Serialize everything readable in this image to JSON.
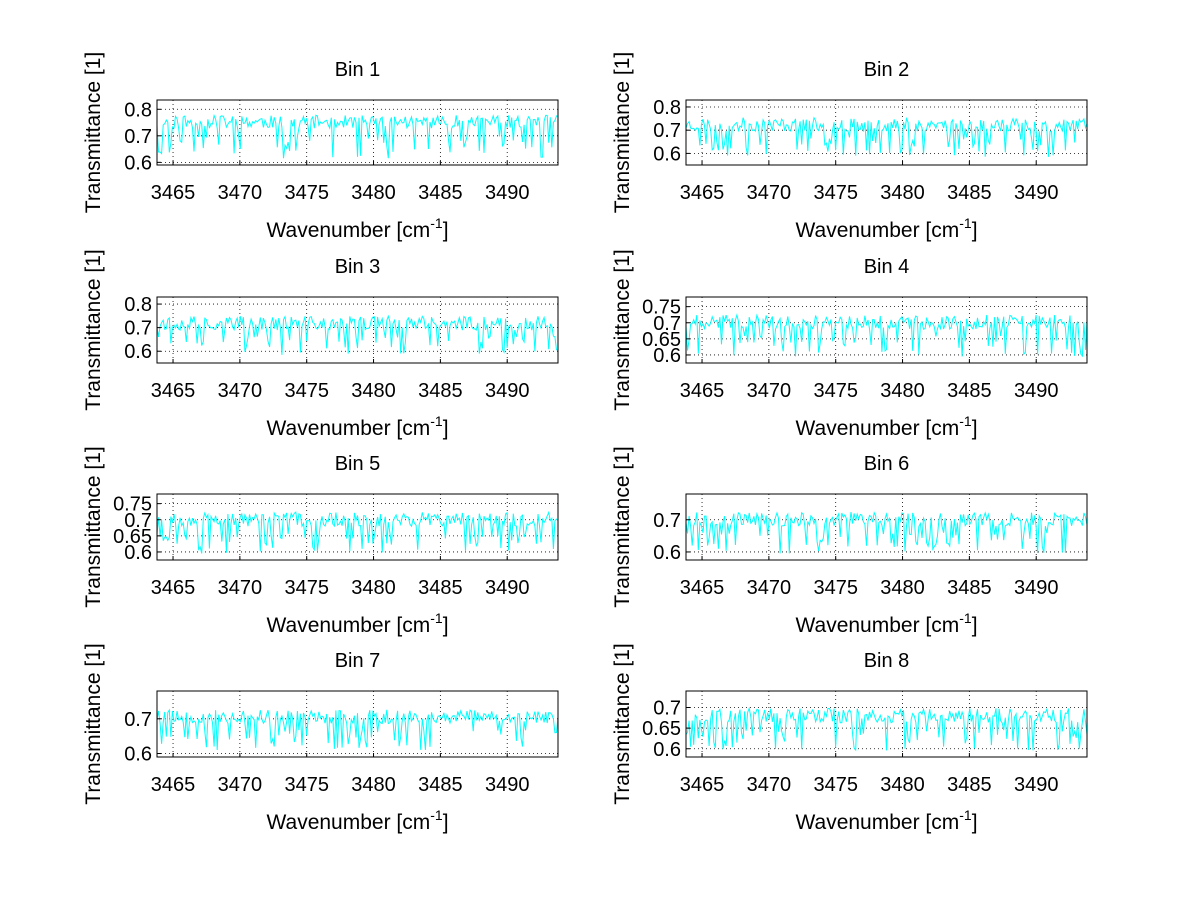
{
  "figure": {
    "background": "#ffffff",
    "line_color": "#00ffff"
  },
  "chart_data": [
    {
      "type": "line",
      "title": "Bin 1",
      "xlabel": "Wavenumber [cm",
      "xlabel_sup": "-1",
      "xlabel_end": "]",
      "ylabel": "Transmittance [1]",
      "xlim": [
        3463.8,
        3493.8
      ],
      "ylim": [
        0.59,
        0.835
      ],
      "xticks": [
        3465,
        3470,
        3475,
        3480,
        3485,
        3490
      ],
      "xtick_labels": [
        "3465",
        "3470",
        "3475",
        "3480",
        "3485",
        "3490"
      ],
      "yticks": [
        0.6,
        0.7,
        0.8
      ],
      "ytick_labels": [
        "0.6",
        "0.7",
        "0.8"
      ],
      "series": [
        {
          "name": "Bin 1",
          "base": 0.745,
          "amp": 0.05,
          "down": 0.13,
          "seed": 11
        }
      ]
    },
    {
      "type": "line",
      "title": "Bin 2",
      "xlabel": "Wavenumber [cm",
      "xlabel_sup": "-1",
      "xlabel_end": "]",
      "ylabel": "Transmittance [1]",
      "xlim": [
        3463.8,
        3493.8
      ],
      "ylim": [
        0.55,
        0.83
      ],
      "xticks": [
        3465,
        3470,
        3475,
        3480,
        3485,
        3490
      ],
      "xtick_labels": [
        "3465",
        "3470",
        "3475",
        "3480",
        "3485",
        "3490"
      ],
      "yticks": [
        0.6,
        0.7,
        0.8
      ],
      "ytick_labels": [
        "0.6",
        "0.7",
        "0.8"
      ],
      "series": [
        {
          "name": "Bin 2",
          "base": 0.715,
          "amp": 0.06,
          "down": 0.13,
          "seed": 23
        }
      ]
    },
    {
      "type": "line",
      "title": "Bin 3",
      "xlabel": "Wavenumber [cm",
      "xlabel_sup": "-1",
      "xlabel_end": "]",
      "ylabel": "Transmittance [1]",
      "xlim": [
        3463.8,
        3493.8
      ],
      "ylim": [
        0.55,
        0.83
      ],
      "xticks": [
        3465,
        3470,
        3475,
        3480,
        3485,
        3490
      ],
      "xtick_labels": [
        "3465",
        "3470",
        "3475",
        "3480",
        "3485",
        "3490"
      ],
      "yticks": [
        0.6,
        0.7,
        0.8
      ],
      "ytick_labels": [
        "0.6",
        "0.7",
        "0.8"
      ],
      "series": [
        {
          "name": "Bin 3",
          "base": 0.71,
          "amp": 0.06,
          "down": 0.13,
          "seed": 37
        }
      ]
    },
    {
      "type": "line",
      "title": "Bin 4",
      "xlabel": "Wavenumber [cm",
      "xlabel_sup": "-1",
      "xlabel_end": "]",
      "ylabel": "Transmittance [1]",
      "xlim": [
        3463.8,
        3493.8
      ],
      "ylim": [
        0.575,
        0.78
      ],
      "xticks": [
        3465,
        3470,
        3475,
        3480,
        3485,
        3490
      ],
      "xtick_labels": [
        "3465",
        "3470",
        "3475",
        "3480",
        "3485",
        "3490"
      ],
      "yticks": [
        0.6,
        0.65,
        0.7,
        0.75
      ],
      "ytick_labels": [
        "0.6",
        "0.65",
        "0.7",
        "0.75"
      ],
      "series": [
        {
          "name": "Bin 4",
          "base": 0.695,
          "amp": 0.045,
          "down": 0.1,
          "seed": 41
        }
      ]
    },
    {
      "type": "line",
      "title": "Bin 5",
      "xlabel": "Wavenumber [cm",
      "xlabel_sup": "-1",
      "xlabel_end": "]",
      "ylabel": "Transmittance [1]",
      "xlim": [
        3463.8,
        3493.8
      ],
      "ylim": [
        0.575,
        0.78
      ],
      "xticks": [
        3465,
        3470,
        3475,
        3480,
        3485,
        3490
      ],
      "xtick_labels": [
        "3465",
        "3470",
        "3475",
        "3480",
        "3485",
        "3490"
      ],
      "yticks": [
        0.6,
        0.65,
        0.7,
        0.75
      ],
      "ytick_labels": [
        "0.6",
        "0.65",
        "0.7",
        "0.75"
      ],
      "series": [
        {
          "name": "Bin 5",
          "base": 0.695,
          "amp": 0.045,
          "down": 0.1,
          "seed": 53
        }
      ]
    },
    {
      "type": "line",
      "title": "Bin 6",
      "xlabel": "Wavenumber [cm",
      "xlabel_sup": "-1",
      "xlabel_end": "]",
      "ylabel": "Transmittance [1]",
      "xlim": [
        3463.8,
        3493.8
      ],
      "ylim": [
        0.575,
        0.78
      ],
      "xticks": [
        3465,
        3470,
        3475,
        3480,
        3485,
        3490
      ],
      "xtick_labels": [
        "3465",
        "3470",
        "3475",
        "3480",
        "3485",
        "3490"
      ],
      "yticks": [
        0.6,
        0.7
      ],
      "ytick_labels": [
        "0.6",
        "0.7"
      ],
      "series": [
        {
          "name": "Bin 6",
          "base": 0.695,
          "amp": 0.045,
          "down": 0.1,
          "seed": 67
        }
      ]
    },
    {
      "type": "line",
      "title": "Bin 7",
      "xlabel": "Wavenumber [cm",
      "xlabel_sup": "-1",
      "xlabel_end": "]",
      "ylabel": "Transmittance [1]",
      "xlim": [
        3463.8,
        3493.8
      ],
      "ylim": [
        0.59,
        0.78
      ],
      "xticks": [
        3465,
        3470,
        3475,
        3480,
        3485,
        3490
      ],
      "xtick_labels": [
        "3465",
        "3470",
        "3475",
        "3480",
        "3485",
        "3490"
      ],
      "yticks": [
        0.6,
        0.7
      ],
      "ytick_labels": [
        "0.6",
        "0.7"
      ],
      "series": [
        {
          "name": "Bin 7",
          "base": 0.7,
          "amp": 0.04,
          "down": 0.09,
          "seed": 79
        }
      ]
    },
    {
      "type": "line",
      "title": "Bin 8",
      "xlabel": "Wavenumber [cm",
      "xlabel_sup": "-1",
      "xlabel_end": "]",
      "ylabel": "Transmittance [1]",
      "xlim": [
        3463.8,
        3493.8
      ],
      "ylim": [
        0.58,
        0.74
      ],
      "xticks": [
        3465,
        3470,
        3475,
        3480,
        3485,
        3490
      ],
      "xtick_labels": [
        "3465",
        "3470",
        "3475",
        "3480",
        "3485",
        "3490"
      ],
      "yticks": [
        0.6,
        0.65,
        0.7
      ],
      "ytick_labels": [
        "0.6",
        "0.65",
        "0.7"
      ],
      "series": [
        {
          "name": "Bin 8",
          "base": 0.675,
          "amp": 0.035,
          "down": 0.08,
          "seed": 97
        }
      ]
    }
  ]
}
